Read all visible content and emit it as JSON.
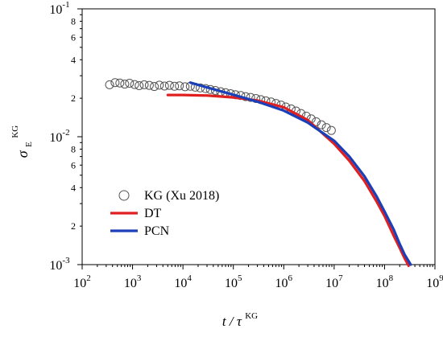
{
  "chart_data": {
    "type": "line",
    "title": "",
    "xlabel": {
      "main": "t / τ",
      "sup": "KG"
    },
    "ylabel": {
      "main": "σ",
      "sub": "E",
      "sup": "KG"
    },
    "xscale": "log",
    "yscale": "log",
    "xlim": [
      100,
      1000000000
    ],
    "ylim": [
      0.001,
      0.1
    ],
    "x_ticks": [
      {
        "value": 100,
        "base": "10",
        "exp": "2"
      },
      {
        "value": 1000,
        "base": "10",
        "exp": "3"
      },
      {
        "value": 10000,
        "base": "10",
        "exp": "4"
      },
      {
        "value": 100000,
        "base": "10",
        "exp": "5"
      },
      {
        "value": 1000000,
        "base": "10",
        "exp": "6"
      },
      {
        "value": 10000000,
        "base": "10",
        "exp": "7"
      },
      {
        "value": 100000000,
        "base": "10",
        "exp": "8"
      },
      {
        "value": 1000000000,
        "base": "10",
        "exp": "9"
      }
    ],
    "y_major_ticks": [
      {
        "value": 0.001,
        "base": "10",
        "exp": "-3"
      },
      {
        "value": 0.01,
        "base": "10",
        "exp": "-2"
      },
      {
        "value": 0.1,
        "base": "10",
        "exp": "-1"
      }
    ],
    "y_minor_labels": [
      {
        "value": 0.002,
        "label": "2"
      },
      {
        "value": 0.004,
        "label": "4"
      },
      {
        "value": 0.006,
        "label": "6"
      },
      {
        "value": 0.008,
        "label": "8"
      },
      {
        "value": 0.02,
        "label": "2"
      },
      {
        "value": 0.04,
        "label": "4"
      },
      {
        "value": 0.06,
        "label": "6"
      },
      {
        "value": 0.08,
        "label": "8"
      }
    ],
    "grid": false,
    "legend_position": "bottom-left",
    "series": [
      {
        "name": "KG (Xu 2018)",
        "kind": "markers",
        "marker": "open-circle",
        "color": "#555555",
        "x": [
          350,
          450,
          560,
          700,
          870,
          1100,
          1350,
          1700,
          2150,
          2700,
          3400,
          4300,
          5400,
          6800,
          8500,
          11000,
          14000,
          17500,
          22000,
          28000,
          35000,
          44000,
          56000,
          70000,
          88000,
          110000,
          140000,
          175000,
          220000,
          280000,
          350000,
          440000,
          560000,
          700000,
          880000,
          1100000,
          1400000,
          1750000,
          2200000,
          2800000,
          3500000,
          4400000,
          5600000,
          7000000,
          8800000
        ],
        "y": [
          0.0255,
          0.0265,
          0.0263,
          0.0258,
          0.0262,
          0.0256,
          0.0251,
          0.0255,
          0.0252,
          0.0247,
          0.0253,
          0.0249,
          0.0252,
          0.0248,
          0.025,
          0.0246,
          0.0248,
          0.0244,
          0.0241,
          0.0238,
          0.0234,
          0.023,
          0.0225,
          0.0221,
          0.0217,
          0.0213,
          0.021,
          0.0206,
          0.0203,
          0.0199,
          0.0195,
          0.0191,
          0.0187,
          0.0182,
          0.0177,
          0.0171,
          0.0165,
          0.0159,
          0.0152,
          0.0145,
          0.0138,
          0.0131,
          0.0124,
          0.0118,
          0.0112
        ]
      },
      {
        "name": "DT",
        "kind": "line",
        "color": "#e02020",
        "x": [
          5000,
          10000,
          30000,
          100000,
          300000,
          1000000,
          3000000,
          10000000,
          20000000,
          40000000,
          70000000,
          100000000,
          150000000,
          200000000,
          250000000,
          300000000
        ],
        "y": [
          0.0212,
          0.0212,
          0.021,
          0.0203,
          0.0192,
          0.017,
          0.0135,
          0.0088,
          0.0065,
          0.0045,
          0.0031,
          0.0024,
          0.0017,
          0.00135,
          0.00112,
          0.00098
        ]
      },
      {
        "name": "PCN",
        "kind": "line",
        "color": "#1a3fb8",
        "x": [
          14000,
          30000,
          100000,
          300000,
          1000000,
          3000000,
          10000000,
          20000000,
          40000000,
          70000000,
          100000000,
          150000000,
          200000000,
          250000000,
          330000000
        ],
        "y": [
          0.0265,
          0.0243,
          0.0213,
          0.0188,
          0.016,
          0.0129,
          0.0093,
          0.007,
          0.0049,
          0.0034,
          0.0026,
          0.0019,
          0.00145,
          0.0012,
          0.001
        ]
      }
    ]
  }
}
